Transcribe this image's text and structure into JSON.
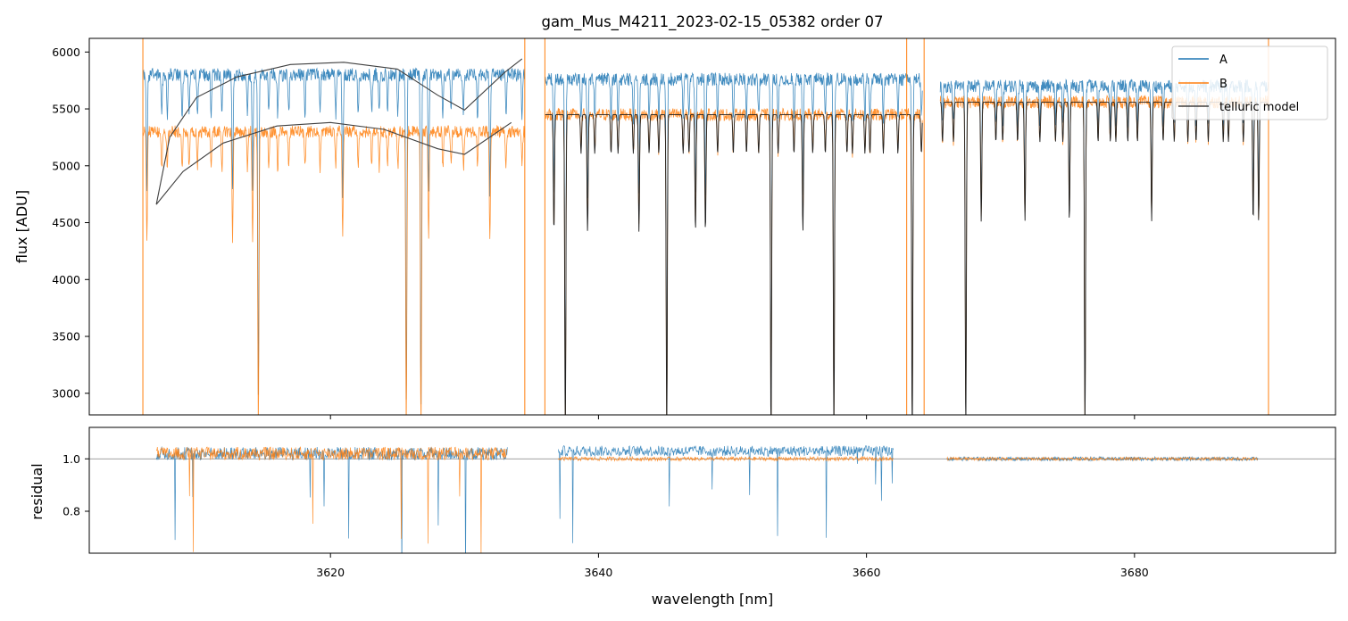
{
  "chart_data": {
    "type": "line",
    "title": "gam_Mus_M4211_2023-02-15_05382  order 07",
    "xlabel": "wavelength [nm]",
    "xlim": [
      3602,
      3695
    ],
    "x_ticks": [
      3620,
      3640,
      3660,
      3680
    ],
    "colors": {
      "A": "#1f77b4",
      "B": "#ff7f0e",
      "telluric": "#404040",
      "ref": "#808080"
    },
    "top_panel": {
      "ylabel": "flux [ADU]",
      "ylim": [
        2810,
        6120
      ],
      "y_ticks": [
        3000,
        3500,
        4000,
        4500,
        5000,
        5500,
        6000
      ],
      "legend": {
        "location": "top-right",
        "entries": [
          "A",
          "B",
          "telluric model"
        ]
      },
      "segments": [
        {
          "x": [
            3606.0,
            3634.5
          ],
          "A_cont": 5800,
          "B_cont": 5300
        },
        {
          "x": [
            3636.0,
            3664.2
          ],
          "A_cont": 5760,
          "B_cont": 5450
        },
        {
          "x": [
            3665.5,
            3690.0
          ],
          "A_cont": 5700,
          "B_cont": 5560
        }
      ],
      "telluric_model_points": [
        [
          3607.0,
          4660
        ],
        [
          3608.0,
          5250
        ],
        [
          3610.0,
          5600
        ],
        [
          3613.0,
          5780
        ],
        [
          3617.0,
          5890
        ],
        [
          3621.0,
          5910
        ],
        [
          3625.0,
          5850
        ],
        [
          3628.0,
          5620
        ],
        [
          3630.0,
          5490
        ],
        [
          3633.0,
          5820
        ],
        [
          3634.3,
          5940
        ]
      ],
      "telluric_model_points_lower": [
        [
          3607.0,
          4660
        ],
        [
          3609.0,
          4950
        ],
        [
          3612.0,
          5200
        ],
        [
          3616.0,
          5350
        ],
        [
          3620.0,
          5380
        ],
        [
          3624.0,
          5320
        ],
        [
          3628.0,
          5150
        ],
        [
          3630.0,
          5100
        ],
        [
          3633.5,
          5380
        ]
      ]
    },
    "bottom_panel": {
      "ylabel": "residual",
      "ylim": [
        0.64,
        1.12
      ],
      "y_ticks": [
        0.8,
        1.0
      ],
      "reference_line": 1.0
    }
  }
}
